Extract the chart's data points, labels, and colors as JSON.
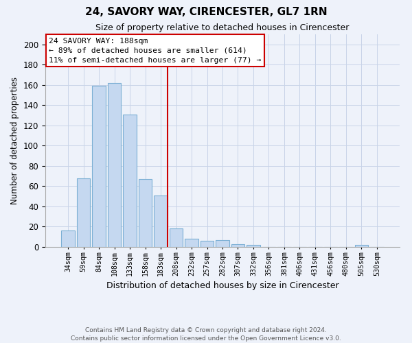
{
  "title": "24, SAVORY WAY, CIRENCESTER, GL7 1RN",
  "subtitle": "Size of property relative to detached houses in Cirencester",
  "xlabel": "Distribution of detached houses by size in Cirencester",
  "ylabel": "Number of detached properties",
  "bar_labels": [
    "34sqm",
    "59sqm",
    "84sqm",
    "108sqm",
    "133sqm",
    "158sqm",
    "183sqm",
    "208sqm",
    "232sqm",
    "257sqm",
    "282sqm",
    "307sqm",
    "332sqm",
    "356sqm",
    "381sqm",
    "406sqm",
    "431sqm",
    "456sqm",
    "480sqm",
    "505sqm",
    "530sqm"
  ],
  "bar_values": [
    16,
    68,
    159,
    162,
    131,
    67,
    51,
    18,
    8,
    6,
    7,
    3,
    2,
    0,
    0,
    0,
    0,
    0,
    0,
    2,
    0
  ],
  "bar_color": "#c5d8f0",
  "bar_edge_color": "#7bafd4",
  "vline_index": 6,
  "vline_color": "#cc0000",
  "annotation_line1": "24 SAVORY WAY: 188sqm",
  "annotation_line2": "← 89% of detached houses are smaller (614)",
  "annotation_line3": "11% of semi-detached houses are larger (77) →",
  "annotation_box_color": "#ffffff",
  "annotation_box_edge": "#cc0000",
  "ylim": [
    0,
    210
  ],
  "yticks": [
    0,
    20,
    40,
    60,
    80,
    100,
    120,
    140,
    160,
    180,
    200
  ],
  "footer1": "Contains HM Land Registry data © Crown copyright and database right 2024.",
  "footer2": "Contains public sector information licensed under the Open Government Licence v3.0.",
  "bg_color": "#eef2fa",
  "plot_bg_color": "#eef2fa",
  "grid_color": "#c8d4e8"
}
